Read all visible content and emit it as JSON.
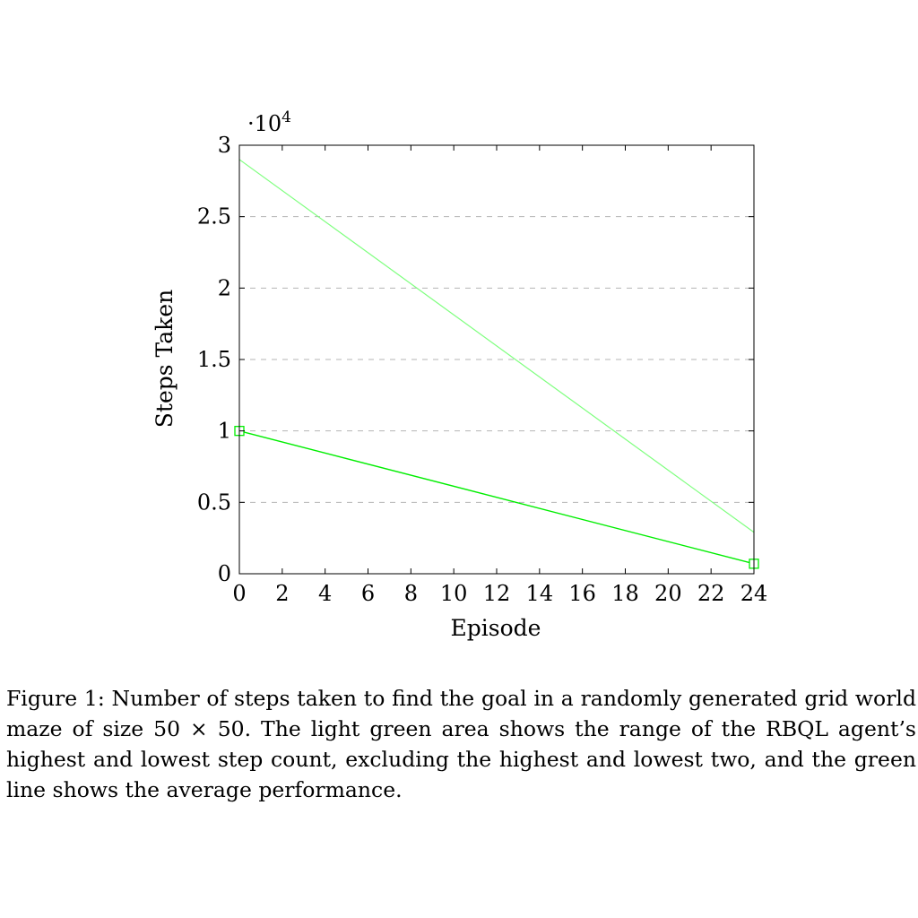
{
  "chart_data": {
    "type": "line",
    "title": "",
    "xlabel": "Episode",
    "ylabel": "Steps Taken",
    "y_scale_label": "·10",
    "y_scale_exponent": "4",
    "xlim": [
      0,
      24
    ],
    "ylim": [
      0,
      3
    ],
    "x_ticks": [
      "0",
      "2",
      "4",
      "6",
      "8",
      "10",
      "12",
      "14",
      "16",
      "18",
      "20",
      "22",
      "24"
    ],
    "y_ticks": [
      "0",
      "0.5",
      "1",
      "1.5",
      "2",
      "2.5",
      "3"
    ],
    "grid": "horizontal dashed",
    "band": {
      "color": "#7fff7f",
      "upper": {
        "x": [
          0,
          24
        ],
        "y": [
          2.9,
          0.29
        ]
      },
      "lower": {
        "x": [
          0,
          24
        ],
        "y": [
          0.0,
          0.0
        ]
      }
    },
    "series": [
      {
        "color": "#00ee00",
        "marker": "square",
        "x": [
          0,
          24
        ],
        "y": [
          1.0,
          0.07
        ]
      }
    ]
  },
  "caption": "Figure 1: Number of steps taken to find the goal in a randomly generated grid world maze of size 50 × 50. The light green area shows the range of the RBQL agent’s highest and lowest step count, excluding the highest and lowest two, and the green line shows the average performance."
}
